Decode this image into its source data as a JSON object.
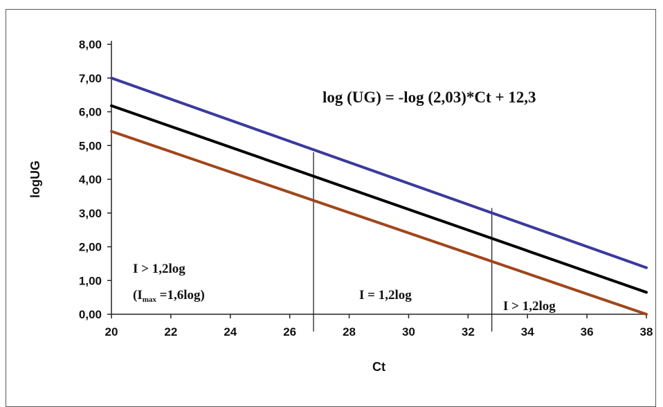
{
  "chart_data": {
    "type": "line",
    "xlabel": "Ct",
    "ylabel": "logUG",
    "xlim": [
      20,
      38
    ],
    "ylim": [
      0,
      8
    ],
    "x_ticks": [
      "20",
      "22",
      "24",
      "26",
      "28",
      "30",
      "32",
      "34",
      "36",
      "38"
    ],
    "y_ticks": [
      "0,00",
      "1,00",
      "2,00",
      "3,00",
      "4,00",
      "5,00",
      "6,00",
      "7,00",
      "8,00"
    ],
    "equation": "log (UG) = -log  (2,03)*Ct + 12,3",
    "colors": {
      "upper": "#3a3a9c",
      "center": "#000000",
      "lower": "#a0461b"
    },
    "series": [
      {
        "x": [
          20,
          38
        ],
        "values": [
          7.0,
          1.38
        ]
      },
      {
        "x": [
          20,
          38
        ],
        "values": [
          6.18,
          0.65
        ]
      },
      {
        "x": [
          20,
          38
        ],
        "values": [
          5.42,
          0.0
        ]
      }
    ],
    "vlines": [
      26.8,
      32.8
    ],
    "regions": [
      {
        "line1": "I  > 1,2log",
        "line2_pre": "(I",
        "line2_sub": "max",
        "line2_post": " =1,6log)"
      },
      {
        "line1": "I = 1,2log"
      },
      {
        "line1": "I > 1,2log"
      }
    ]
  }
}
